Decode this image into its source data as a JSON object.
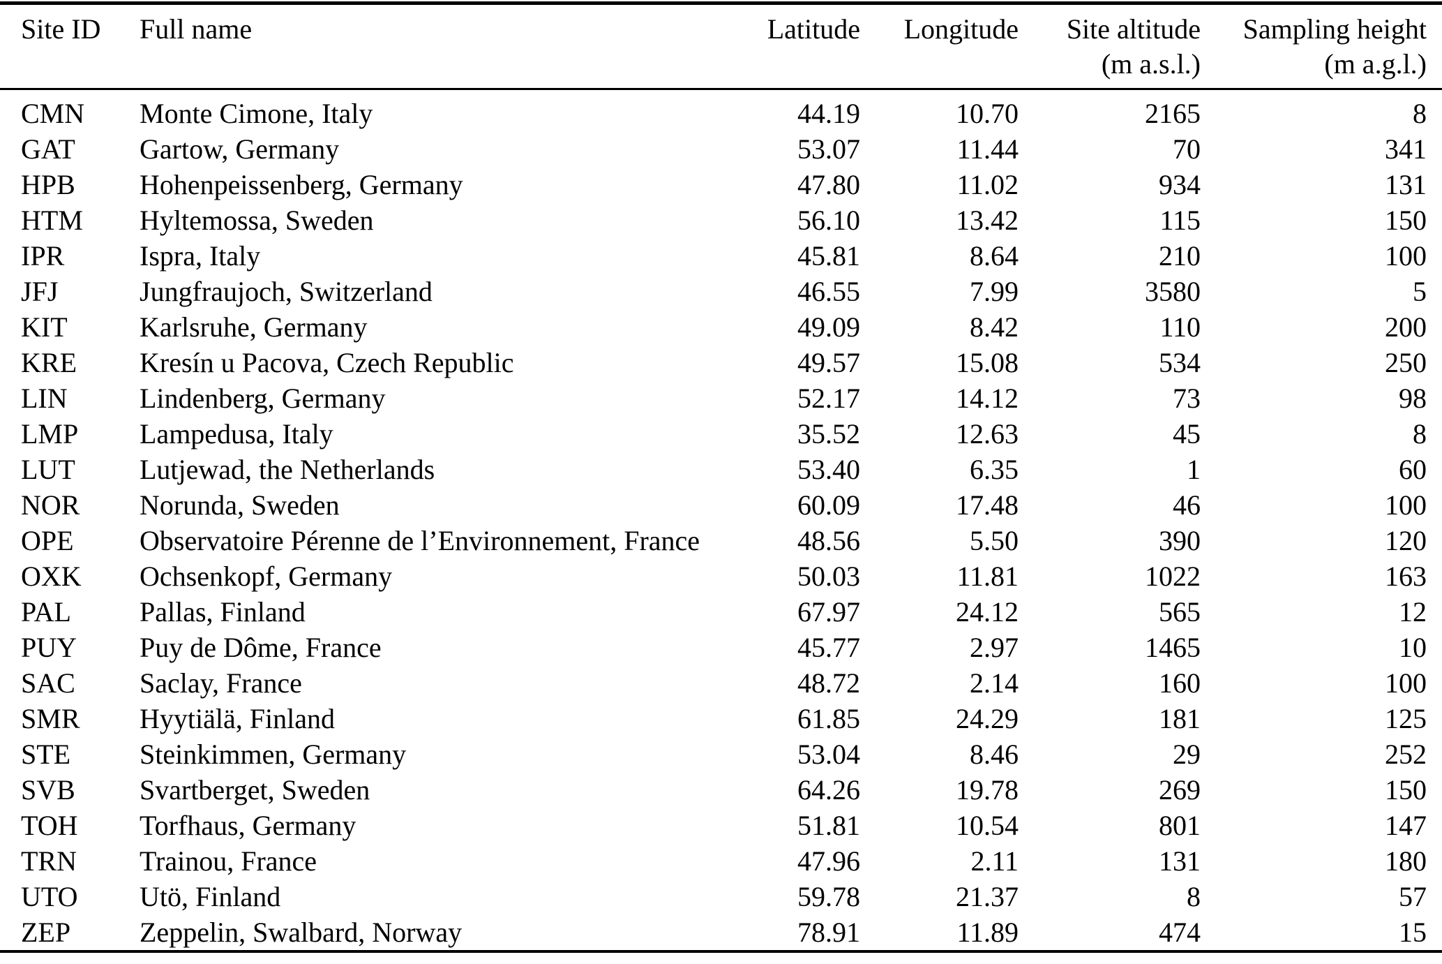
{
  "table": {
    "columns": [
      {
        "label": "Site ID",
        "sub": ""
      },
      {
        "label": "Full name",
        "sub": ""
      },
      {
        "label": "Latitude",
        "sub": ""
      },
      {
        "label": "Longitude",
        "sub": ""
      },
      {
        "label": "Site altitude",
        "sub": "(m a.s.l.)"
      },
      {
        "label": "Sampling height",
        "sub": "(m a.g.l.)"
      }
    ],
    "rows": [
      {
        "site_id": "CMN",
        "full_name": "Monte Cimone, Italy",
        "latitude": "44.19",
        "longitude": "10.70",
        "site_altitude": "2165",
        "sampling_height": "8"
      },
      {
        "site_id": "GAT",
        "full_name": "Gartow, Germany",
        "latitude": "53.07",
        "longitude": "11.44",
        "site_altitude": "70",
        "sampling_height": "341"
      },
      {
        "site_id": "HPB",
        "full_name": "Hohenpeissenberg, Germany",
        "latitude": "47.80",
        "longitude": "11.02",
        "site_altitude": "934",
        "sampling_height": "131"
      },
      {
        "site_id": "HTM",
        "full_name": "Hyltemossa, Sweden",
        "latitude": "56.10",
        "longitude": "13.42",
        "site_altitude": "115",
        "sampling_height": "150"
      },
      {
        "site_id": "IPR",
        "full_name": "Ispra, Italy",
        "latitude": "45.81",
        "longitude": "8.64",
        "site_altitude": "210",
        "sampling_height": "100"
      },
      {
        "site_id": "JFJ",
        "full_name": "Jungfraujoch, Switzerland",
        "latitude": "46.55",
        "longitude": "7.99",
        "site_altitude": "3580",
        "sampling_height": "5"
      },
      {
        "site_id": "KIT",
        "full_name": "Karlsruhe, Germany",
        "latitude": "49.09",
        "longitude": "8.42",
        "site_altitude": "110",
        "sampling_height": "200"
      },
      {
        "site_id": "KRE",
        "full_name": "Kresín u Pacova, Czech Republic",
        "latitude": "49.57",
        "longitude": "15.08",
        "site_altitude": "534",
        "sampling_height": "250"
      },
      {
        "site_id": "LIN",
        "full_name": "Lindenberg, Germany",
        "latitude": "52.17",
        "longitude": "14.12",
        "site_altitude": "73",
        "sampling_height": "98"
      },
      {
        "site_id": "LMP",
        "full_name": "Lampedusa, Italy",
        "latitude": "35.52",
        "longitude": "12.63",
        "site_altitude": "45",
        "sampling_height": "8"
      },
      {
        "site_id": "LUT",
        "full_name": "Lutjewad, the Netherlands",
        "latitude": "53.40",
        "longitude": "6.35",
        "site_altitude": "1",
        "sampling_height": "60"
      },
      {
        "site_id": "NOR",
        "full_name": "Norunda, Sweden",
        "latitude": "60.09",
        "longitude": "17.48",
        "site_altitude": "46",
        "sampling_height": "100"
      },
      {
        "site_id": "OPE",
        "full_name": "Observatoire Pérenne de l’Environnement, France",
        "latitude": "48.56",
        "longitude": "5.50",
        "site_altitude": "390",
        "sampling_height": "120"
      },
      {
        "site_id": "OXK",
        "full_name": "Ochsenkopf, Germany",
        "latitude": "50.03",
        "longitude": "11.81",
        "site_altitude": "1022",
        "sampling_height": "163"
      },
      {
        "site_id": "PAL",
        "full_name": "Pallas, Finland",
        "latitude": "67.97",
        "longitude": "24.12",
        "site_altitude": "565",
        "sampling_height": "12"
      },
      {
        "site_id": "PUY",
        "full_name": "Puy de Dôme, France",
        "latitude": "45.77",
        "longitude": "2.97",
        "site_altitude": "1465",
        "sampling_height": "10"
      },
      {
        "site_id": "SAC",
        "full_name": "Saclay, France",
        "latitude": "48.72",
        "longitude": "2.14",
        "site_altitude": "160",
        "sampling_height": "100"
      },
      {
        "site_id": "SMR",
        "full_name": "Hyytiälä, Finland",
        "latitude": "61.85",
        "longitude": "24.29",
        "site_altitude": "181",
        "sampling_height": "125"
      },
      {
        "site_id": "STE",
        "full_name": "Steinkimmen, Germany",
        "latitude": "53.04",
        "longitude": "8.46",
        "site_altitude": "29",
        "sampling_height": "252"
      },
      {
        "site_id": "SVB",
        "full_name": "Svartberget, Sweden",
        "latitude": "64.26",
        "longitude": "19.78",
        "site_altitude": "269",
        "sampling_height": "150"
      },
      {
        "site_id": "TOH",
        "full_name": "Torfhaus, Germany",
        "latitude": "51.81",
        "longitude": "10.54",
        "site_altitude": "801",
        "sampling_height": "147"
      },
      {
        "site_id": "TRN",
        "full_name": "Trainou, France",
        "latitude": "47.96",
        "longitude": "2.11",
        "site_altitude": "131",
        "sampling_height": "180"
      },
      {
        "site_id": "UTO",
        "full_name": "Utö, Finland",
        "latitude": "59.78",
        "longitude": "21.37",
        "site_altitude": "8",
        "sampling_height": "57"
      },
      {
        "site_id": "ZEP",
        "full_name": "Zeppelin, Swalbard, Norway",
        "latitude": "78.91",
        "longitude": "11.89",
        "site_altitude": "474",
        "sampling_height": "15"
      }
    ]
  },
  "colors": {
    "text": "#000000",
    "background": "#ffffff",
    "rule": "#000000"
  }
}
